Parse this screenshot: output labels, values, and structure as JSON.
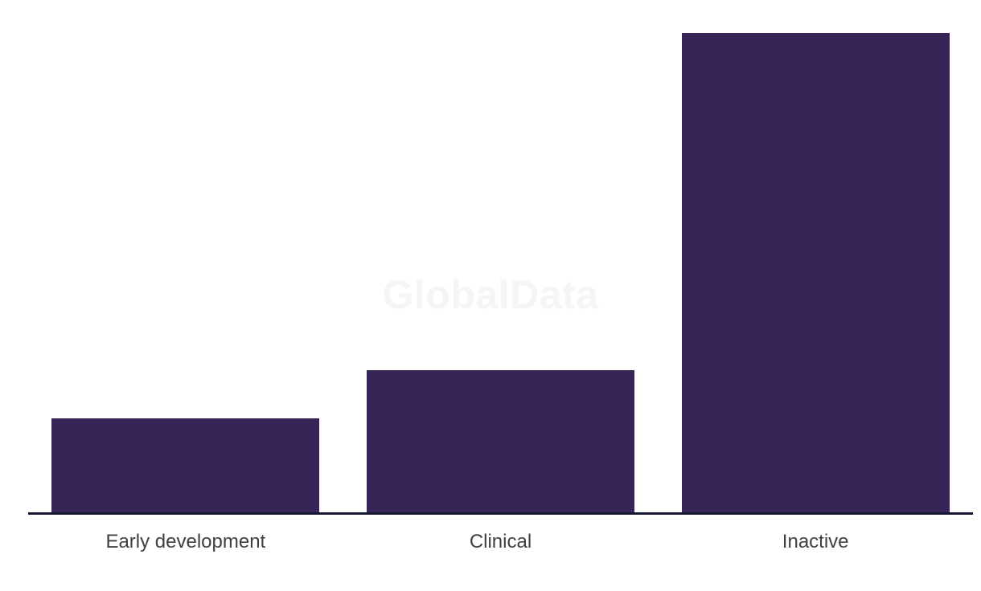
{
  "watermark": {
    "text": "GlobalData"
  },
  "colors": {
    "background": "#ffffff",
    "bar": "#362556",
    "axis_line": "#161732",
    "label": "#404040",
    "watermark": "#f5f5f6"
  },
  "chart_data": {
    "type": "bar",
    "categories": [
      "Early development",
      "Clinical",
      "Inactive"
    ],
    "values": [
      120,
      180,
      600
    ],
    "title": "",
    "xlabel": "",
    "ylabel": "",
    "ylim": [
      0,
      641
    ],
    "grid": false,
    "legend": false,
    "y_axis_visible": false,
    "x_axis_line_visible": true
  }
}
